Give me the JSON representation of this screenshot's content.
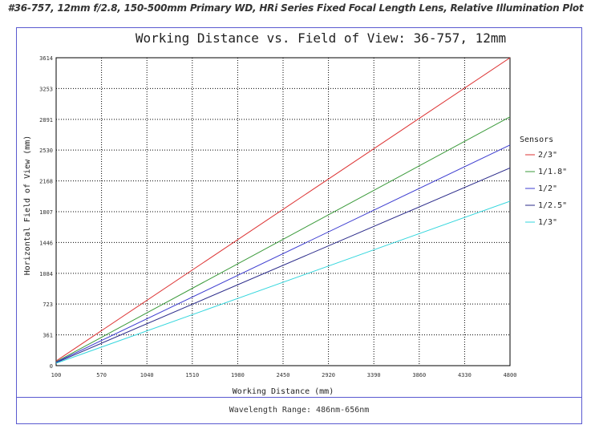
{
  "page": {
    "caption": "#36-757, 12mm f/2.8, 150-500mm Primary WD, HRi Series Fixed Focal Length Lens, Relative Illumination Plot",
    "footer": "Wavelength Range: 486nm-656nm"
  },
  "chart_data": {
    "type": "line",
    "title": "Working Distance vs. Field of View: 36-757, 12mm",
    "xlabel": "Working Distance (mm)",
    "ylabel": "Horizontal Field of View (mm)",
    "xlim": [
      100,
      4800
    ],
    "ylim": [
      0,
      3614
    ],
    "xticks": [
      100,
      570,
      1040,
      1510,
      1980,
      2450,
      2920,
      3390,
      3860,
      4330,
      4800
    ],
    "yticks": [
      0,
      361,
      723,
      1084,
      1446,
      1807,
      2168,
      2530,
      2891,
      3253,
      3614
    ],
    "grid": true,
    "legend_title": "Sensors",
    "legend_position": "right",
    "series": [
      {
        "name": "2/3\"",
        "color": "#dd3333",
        "x": [
          100,
          4800
        ],
        "y": [
          55,
          3614
        ]
      },
      {
        "name": "1/1.8\"",
        "color": "#3a9a3a",
        "x": [
          100,
          4800
        ],
        "y": [
          45,
          2920
        ]
      },
      {
        "name": "1/2\"",
        "color": "#3d3dd0",
        "x": [
          100,
          4800
        ],
        "y": [
          40,
          2590
        ]
      },
      {
        "name": "1/2.5\"",
        "color": "#2b2b8a",
        "x": [
          100,
          4800
        ],
        "y": [
          35,
          2320
        ]
      },
      {
        "name": "1/3\"",
        "color": "#33d6dd",
        "x": [
          100,
          4800
        ],
        "y": [
          28,
          1930
        ]
      }
    ]
  }
}
